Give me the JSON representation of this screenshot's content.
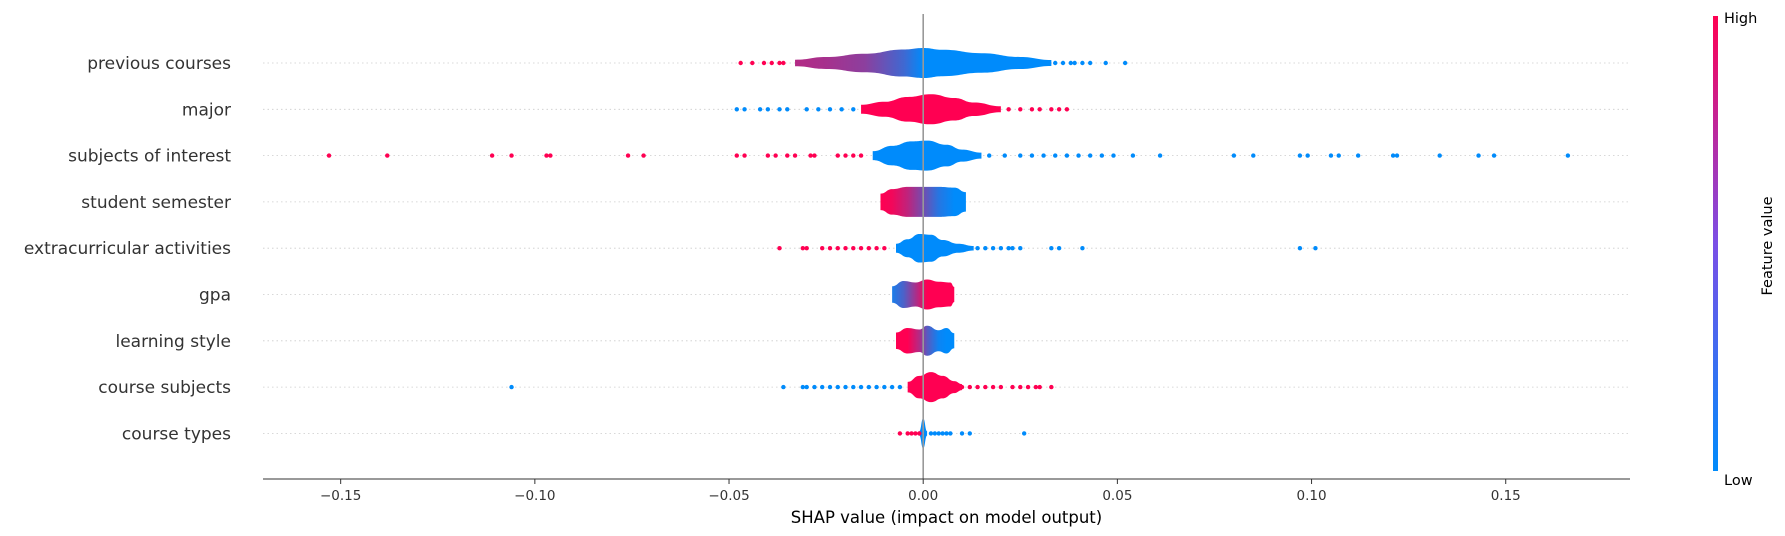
{
  "chart_data": {
    "type": "violin",
    "xlabel": "SHAP value (impact on model output)",
    "xlim": [
      -0.17,
      0.182
    ],
    "x_ticks": [
      -0.15,
      -0.1,
      -0.05,
      0.0,
      0.05,
      0.1,
      0.15
    ],
    "x_tick_labels": [
      "−0.15",
      "−0.10",
      "−0.05",
      "0.00",
      "0.05",
      "0.10",
      "0.15"
    ],
    "grid": "horizontal dotted per feature",
    "colorbar": {
      "title": "Feature value",
      "high_label": "High",
      "low_label": "Low",
      "low_color": "#008bfb",
      "high_color": "#ff0052"
    },
    "features": [
      {
        "name": "previous courses",
        "body": [
          [
            -0.033,
            0.22,
            0.7
          ],
          [
            -0.025,
            0.4,
            0.65
          ],
          [
            -0.015,
            0.62,
            0.55
          ],
          [
            -0.005,
            0.9,
            0.25
          ],
          [
            0.0,
            1.0,
            0.0
          ],
          [
            0.005,
            0.88,
            0.0
          ],
          [
            0.015,
            0.65,
            0.0
          ],
          [
            0.025,
            0.4,
            0.0
          ],
          [
            0.033,
            0.2,
            0.0
          ]
        ],
        "points": [
          [
            -0.047,
            1
          ],
          [
            -0.044,
            1
          ],
          [
            -0.041,
            1
          ],
          [
            -0.039,
            1
          ],
          [
            -0.037,
            1
          ],
          [
            -0.036,
            1
          ],
          [
            0.034,
            0
          ],
          [
            0.036,
            0
          ],
          [
            0.038,
            0
          ],
          [
            0.039,
            0
          ],
          [
            0.041,
            0
          ],
          [
            0.043,
            0
          ],
          [
            0.047,
            0
          ],
          [
            0.052,
            0
          ]
        ]
      },
      {
        "name": "major",
        "body": [
          [
            -0.016,
            0.3,
            1.0
          ],
          [
            -0.01,
            0.5,
            1.0
          ],
          [
            -0.004,
            0.82,
            1.0
          ],
          [
            0.002,
            1.0,
            1.0
          ],
          [
            0.008,
            0.75,
            1.0
          ],
          [
            0.013,
            0.45,
            1.0
          ],
          [
            0.02,
            0.2,
            1.0
          ]
        ],
        "points": [
          [
            -0.048,
            0
          ],
          [
            -0.046,
            0
          ],
          [
            -0.042,
            0
          ],
          [
            -0.04,
            0
          ],
          [
            -0.037,
            0
          ],
          [
            -0.035,
            0
          ],
          [
            -0.03,
            0
          ],
          [
            -0.027,
            0
          ],
          [
            -0.024,
            0
          ],
          [
            -0.021,
            0
          ],
          [
            -0.018,
            0
          ],
          [
            0.022,
            1
          ],
          [
            0.025,
            1
          ],
          [
            0.028,
            1
          ],
          [
            0.03,
            1
          ],
          [
            0.033,
            1
          ],
          [
            0.035,
            1
          ],
          [
            0.037,
            1
          ]
        ]
      },
      {
        "name": "subjects of interest",
        "body": [
          [
            -0.013,
            0.3,
            0.0
          ],
          [
            -0.008,
            0.65,
            0.0
          ],
          [
            -0.003,
            0.95,
            0.0
          ],
          [
            0.001,
            1.0,
            0.0
          ],
          [
            0.006,
            0.72,
            0.0
          ],
          [
            0.01,
            0.4,
            0.0
          ],
          [
            0.015,
            0.2,
            0.0
          ]
        ],
        "points": [
          [
            -0.153,
            1
          ],
          [
            -0.138,
            1
          ],
          [
            -0.111,
            1
          ],
          [
            -0.106,
            1
          ],
          [
            -0.097,
            1
          ],
          [
            -0.096,
            1
          ],
          [
            -0.076,
            1
          ],
          [
            -0.072,
            1
          ],
          [
            -0.048,
            1
          ],
          [
            -0.046,
            1
          ],
          [
            -0.04,
            1
          ],
          [
            -0.038,
            1
          ],
          [
            -0.035,
            1
          ],
          [
            -0.033,
            1
          ],
          [
            -0.029,
            1
          ],
          [
            -0.028,
            1
          ],
          [
            -0.022,
            1
          ],
          [
            -0.02,
            1
          ],
          [
            -0.018,
            1
          ],
          [
            -0.016,
            1
          ],
          [
            0.017,
            0
          ],
          [
            0.021,
            0
          ],
          [
            0.025,
            0
          ],
          [
            0.028,
            0
          ],
          [
            0.031,
            0
          ],
          [
            0.034,
            0
          ],
          [
            0.037,
            0
          ],
          [
            0.04,
            0
          ],
          [
            0.043,
            0
          ],
          [
            0.046,
            0
          ],
          [
            0.049,
            0
          ],
          [
            0.054,
            0
          ],
          [
            0.061,
            0
          ],
          [
            0.08,
            0
          ],
          [
            0.085,
            0
          ],
          [
            0.097,
            0
          ],
          [
            0.099,
            0
          ],
          [
            0.105,
            0
          ],
          [
            0.107,
            0
          ],
          [
            0.112,
            0
          ],
          [
            0.121,
            0
          ],
          [
            0.122,
            0
          ],
          [
            0.133,
            0
          ],
          [
            0.143,
            0
          ],
          [
            0.147,
            0
          ],
          [
            0.166,
            0
          ]
        ]
      },
      {
        "name": "student semester",
        "body": [
          [
            -0.011,
            0.55,
            1.0
          ],
          [
            -0.008,
            0.85,
            0.95
          ],
          [
            -0.004,
            1.0,
            0.75
          ],
          [
            0.0,
            1.0,
            0.45
          ],
          [
            0.004,
            1.0,
            0.15
          ],
          [
            0.008,
            0.95,
            0.0
          ],
          [
            0.011,
            0.65,
            0.0
          ]
        ],
        "points": []
      },
      {
        "name": "extracurricular activities",
        "body": [
          [
            -0.007,
            0.3,
            0.0
          ],
          [
            -0.004,
            0.6,
            0.0
          ],
          [
            -0.001,
            0.95,
            0.0
          ],
          [
            0.002,
            0.9,
            0.0
          ],
          [
            0.005,
            0.55,
            0.0
          ],
          [
            0.009,
            0.3,
            0.0
          ],
          [
            0.013,
            0.15,
            0.0
          ]
        ],
        "points": [
          [
            -0.037,
            1
          ],
          [
            -0.031,
            1
          ],
          [
            -0.03,
            1
          ],
          [
            -0.026,
            1
          ],
          [
            -0.024,
            1
          ],
          [
            -0.022,
            1
          ],
          [
            -0.02,
            1
          ],
          [
            -0.018,
            1
          ],
          [
            -0.016,
            1
          ],
          [
            -0.014,
            1
          ],
          [
            -0.012,
            1
          ],
          [
            -0.01,
            1
          ],
          [
            0.014,
            0
          ],
          [
            0.016,
            0
          ],
          [
            0.018,
            0
          ],
          [
            0.02,
            0
          ],
          [
            0.022,
            0
          ],
          [
            0.023,
            0
          ],
          [
            0.025,
            0
          ],
          [
            0.033,
            0
          ],
          [
            0.035,
            0
          ],
          [
            0.041,
            0
          ],
          [
            0.097,
            0
          ],
          [
            0.101,
            0
          ]
        ]
      },
      {
        "name": "gpa",
        "body": [
          [
            -0.008,
            0.55,
            0.1
          ],
          [
            -0.005,
            0.9,
            0.3
          ],
          [
            -0.002,
            0.8,
            0.65
          ],
          [
            0.001,
            1.0,
            1.0
          ],
          [
            0.004,
            0.85,
            1.0
          ],
          [
            0.007,
            0.8,
            1.0
          ],
          [
            0.008,
            0.5,
            1.0
          ]
        ],
        "points": []
      },
      {
        "name": "learning style",
        "body": [
          [
            -0.007,
            0.55,
            1.0
          ],
          [
            -0.004,
            0.85,
            1.0
          ],
          [
            -0.001,
            0.75,
            0.7
          ],
          [
            0.001,
            1.0,
            0.35
          ],
          [
            0.004,
            0.7,
            0.05
          ],
          [
            0.006,
            0.85,
            0.0
          ],
          [
            0.008,
            0.5,
            0.0
          ]
        ],
        "points": []
      },
      {
        "name": "course subjects",
        "body": [
          [
            -0.004,
            0.35,
            1.0
          ],
          [
            -0.001,
            0.75,
            1.0
          ],
          [
            0.002,
            1.0,
            1.0
          ],
          [
            0.005,
            0.75,
            1.0
          ],
          [
            0.008,
            0.4,
            1.0
          ],
          [
            0.01,
            0.2,
            1.0
          ]
        ],
        "points": [
          [
            -0.106,
            0
          ],
          [
            -0.036,
            0
          ],
          [
            -0.031,
            0
          ],
          [
            -0.03,
            0
          ],
          [
            -0.028,
            0
          ],
          [
            -0.026,
            0
          ],
          [
            -0.024,
            0
          ],
          [
            -0.022,
            0
          ],
          [
            -0.02,
            0
          ],
          [
            -0.018,
            0
          ],
          [
            -0.016,
            0
          ],
          [
            -0.014,
            0
          ],
          [
            -0.012,
            0
          ],
          [
            -0.01,
            0
          ],
          [
            -0.008,
            0
          ],
          [
            -0.006,
            0
          ],
          [
            0.01,
            1
          ],
          [
            0.012,
            1
          ],
          [
            0.014,
            1
          ],
          [
            0.016,
            1
          ],
          [
            0.018,
            1
          ],
          [
            0.02,
            1
          ],
          [
            0.023,
            1
          ],
          [
            0.025,
            1
          ],
          [
            0.027,
            1
          ],
          [
            0.029,
            1
          ],
          [
            0.03,
            1
          ],
          [
            0.033,
            1
          ]
        ]
      },
      {
        "name": "course types",
        "body": [
          [
            -0.001,
            0.15,
            0.0
          ],
          [
            0.0,
            1.0,
            0.0
          ],
          [
            0.001,
            0.15,
            0.0
          ]
        ],
        "points": [
          [
            -0.006,
            1
          ],
          [
            -0.004,
            1
          ],
          [
            -0.003,
            1
          ],
          [
            -0.002,
            1
          ],
          [
            -0.001,
            1
          ],
          [
            0.002,
            0
          ],
          [
            0.003,
            0
          ],
          [
            0.004,
            0
          ],
          [
            0.005,
            0
          ],
          [
            0.006,
            0
          ],
          [
            0.007,
            0
          ],
          [
            0.01,
            0
          ],
          [
            0.012,
            0
          ],
          [
            0.026,
            0
          ]
        ]
      }
    ]
  }
}
